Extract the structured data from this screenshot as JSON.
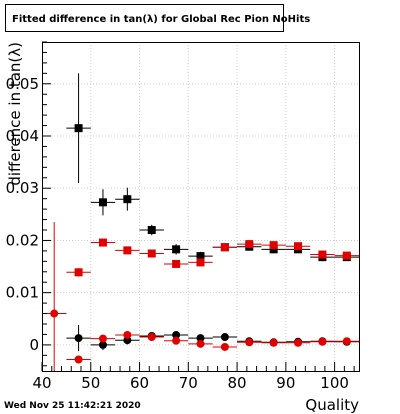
{
  "chart_data": {
    "type": "scatter",
    "title": "Fitted difference in tan(λ) for Global Rec Pion NoHits",
    "xlabel": "Quality",
    "ylabel": "difference in tan(λ)",
    "xlim": [
      40,
      105
    ],
    "ylim": [
      -0.005,
      0.058
    ],
    "x_ticks": [
      40,
      50,
      60,
      70,
      80,
      90,
      100
    ],
    "x_tick_labels": [
      "40",
      "50",
      "60",
      "70",
      "80",
      "90",
      "100"
    ],
    "y_ticks": [
      0,
      0.01,
      0.02,
      0.03,
      0.04,
      0.05
    ],
    "y_tick_labels": [
      "0",
      "0.01",
      "0.02",
      "0.03",
      "0.04",
      "0.05"
    ],
    "grid": true,
    "series": [
      {
        "marker": "square",
        "color": "#000000",
        "x": [
          47.5,
          52.5,
          57.5,
          62.5,
          67.5,
          72.5,
          77.5,
          82.5,
          87.5,
          92.5,
          97.5,
          102.5
        ],
        "y": [
          0.0415,
          0.0273,
          0.0279,
          0.022,
          0.0183,
          0.017,
          0.0187,
          0.0188,
          0.0183,
          0.0183,
          0.0168,
          0.0168
        ],
        "yerr": [
          0.0105,
          0.0025,
          0.0022,
          0.001,
          0.001,
          0.0008,
          0.0007,
          0.0006,
          0.0005,
          0.0005,
          0.0006,
          0.0006
        ]
      },
      {
        "marker": "square",
        "color": "#e00000",
        "x": [
          47.5,
          52.5,
          57.5,
          62.5,
          67.5,
          72.5,
          77.5,
          82.5,
          87.5,
          92.5,
          97.5,
          102.5
        ],
        "y": [
          0.0139,
          0.0196,
          0.0181,
          0.0175,
          0.0155,
          0.0158,
          0.0187,
          0.0193,
          0.0191,
          0.0189,
          0.0173,
          0.0171
        ],
        "yerr": [
          0.0008,
          0.0006,
          0.0005,
          0.0004,
          0.0004,
          0.0004,
          0.0004,
          0.0004,
          0.0004,
          0.0004,
          0.0004,
          0.0004
        ]
      },
      {
        "marker": "circle",
        "color": "#000000",
        "x": [
          47.5,
          52.5,
          57.5,
          62.5,
          67.5,
          72.5,
          77.5,
          82.5,
          87.5,
          92.5,
          97.5,
          102.5
        ],
        "y": [
          0.0013,
          0.0,
          0.0009,
          0.0017,
          0.0019,
          0.0013,
          0.0015,
          0.0007,
          0.0005,
          0.0006,
          0.0007,
          0.0006
        ],
        "yerr": [
          0.0025,
          0.001,
          0.0008,
          0.0005,
          0.0004,
          0.0003,
          0.0003,
          0.0002,
          0.0002,
          0.0002,
          0.0002,
          0.0002
        ]
      },
      {
        "marker": "circle",
        "color": "#e00000",
        "x": [
          42.5,
          47.5,
          52.5,
          57.5,
          62.5,
          67.5,
          72.5,
          77.5,
          82.5,
          87.5,
          92.5,
          97.5,
          102.5
        ],
        "y": [
          0.006,
          -0.0028,
          0.0012,
          0.0019,
          0.0015,
          0.0008,
          0.0002,
          -0.0004,
          0.0005,
          0.0004,
          0.0004,
          0.0006,
          0.0007
        ],
        "yerr": [
          0.0175,
          0.0004,
          0.0003,
          0.0003,
          0.0003,
          0.0003,
          0.0003,
          0.0003,
          0.0003,
          0.0003,
          0.0003,
          0.0003,
          0.0003
        ]
      }
    ]
  },
  "footer": {
    "timestamp": "Wed Nov 25 11:42:21 2020"
  }
}
